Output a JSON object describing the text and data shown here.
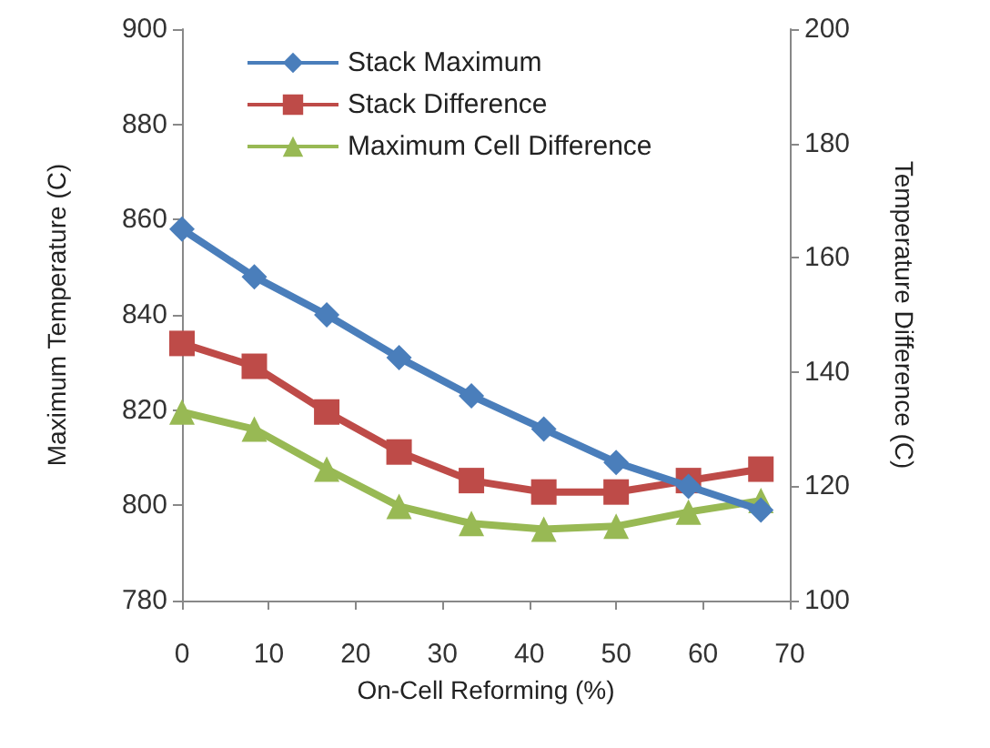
{
  "chart_data": {
    "type": "line",
    "xlabel": "On-Cell Reforming (%)",
    "ylabel": "Maximum Temperature (C)",
    "y2label": "Temperature Difference (C)",
    "x": [
      0,
      8.33,
      16.67,
      25,
      33.33,
      41.67,
      50,
      58.33,
      66.67
    ],
    "xlim": [
      0,
      70
    ],
    "xticks": [
      0,
      10,
      20,
      30,
      40,
      50,
      60,
      70
    ],
    "ylim": [
      780,
      900
    ],
    "yticks": [
      780,
      800,
      820,
      840,
      860,
      880,
      900
    ],
    "y2lim": [
      100,
      200
    ],
    "y2ticks": [
      100,
      120,
      140,
      160,
      180,
      200
    ],
    "grid": false,
    "legend": "top left",
    "line_style": "solid",
    "series": [
      {
        "name": "Stack Maximum",
        "color": "#4a7ebb",
        "marker": "diamond",
        "values": [
          858,
          848,
          840,
          831,
          823,
          816,
          809,
          804,
          799
        ]
      },
      {
        "name": "Stack Difference",
        "color": "#be4b48",
        "marker": "square",
        "axis": "y2",
        "values": [
          145,
          141,
          133,
          126,
          121,
          119,
          119,
          121,
          123
        ]
      },
      {
        "name": "Maximum Cell Difference",
        "color": "#98b954",
        "marker": "triangle",
        "axis": "y2",
        "values": [
          133,
          130,
          123,
          116.5,
          113.5,
          112.5,
          113,
          115.5,
          117.5
        ]
      }
    ]
  }
}
